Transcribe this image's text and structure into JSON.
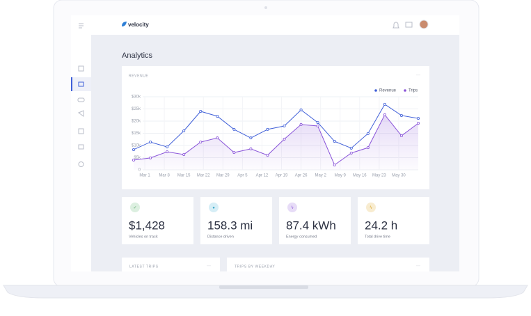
{
  "brand": "velocity",
  "page_title": "Analytics",
  "revenue_card": {
    "title": "REVENUE",
    "menu": "···",
    "chart_data": {
      "type": "line",
      "x": [
        -4,
        2,
        8,
        14,
        20,
        26,
        32,
        38,
        44,
        50,
        56,
        62,
        68,
        74,
        80,
        86,
        92,
        98
      ],
      "series": [
        {
          "name": "Revenue",
          "color": "#3f5fd8",
          "values": [
            8300,
            11400,
            9400,
            16000,
            24000,
            22000,
            16600,
            13100,
            16600,
            18000,
            24600,
            19400,
            11700,
            8900,
            14900,
            26900,
            22300,
            21100
          ]
        },
        {
          "name": "Trips",
          "color": "#8a55d9",
          "values": [
            4000,
            4900,
            7400,
            6300,
            11400,
            13100,
            7100,
            8600,
            6000,
            12600,
            18600,
            18000,
            2000,
            6900,
            9100,
            22600,
            14000,
            19100
          ]
        }
      ],
      "xlim": [
        -5,
        99
      ],
      "xticks": [
        {
          "value": 0,
          "label": "Mar 1"
        },
        {
          "value": 7,
          "label": "Mar 8"
        },
        {
          "value": 14,
          "label": "Mar 15"
        },
        {
          "value": 21,
          "label": "Mar 22"
        },
        {
          "value": 28,
          "label": "Mar 29"
        },
        {
          "value": 35,
          "label": "Apr 5"
        },
        {
          "value": 42,
          "label": "Apr 12"
        },
        {
          "value": 49,
          "label": "Apr 19"
        },
        {
          "value": 56,
          "label": "Apr 26"
        },
        {
          "value": 63,
          "label": "May 2"
        },
        {
          "value": 70,
          "label": "May 9"
        },
        {
          "value": 77,
          "label": "May 16"
        },
        {
          "value": 84,
          "label": "May 23"
        },
        {
          "value": 91,
          "label": "May 30"
        }
      ],
      "ylim": [
        0,
        30000
      ],
      "yticks": [
        0,
        {
          "value": 5000,
          "label": "$5k"
        },
        {
          "value": 10000,
          "label": "$10k"
        },
        {
          "value": 15000,
          "label": "$15k"
        },
        {
          "value": 20000,
          "label": "$20k"
        },
        {
          "value": 25000,
          "label": "$25k"
        },
        {
          "value": 30000,
          "label": "$30k"
        }
      ],
      "grid": true,
      "legend": "upper right"
    }
  },
  "stats": [
    {
      "value": "$1,428",
      "label": "Vehicles on track",
      "icon": "✓",
      "color": "#5aa86a",
      "bg": "#dcefe0"
    },
    {
      "value": "158.3 mi",
      "label": "Distance driven",
      "icon": "●",
      "color": "#3aa6c9",
      "bg": "#d6eef6"
    },
    {
      "value": "87.4 kWh",
      "label": "Energy consumed",
      "icon": "ϟ",
      "color": "#8a55d9",
      "bg": "#e7dcf7"
    },
    {
      "value": "24.2 h",
      "label": "Total drive time",
      "icon": "ϟ",
      "color": "#d9a62a",
      "bg": "#f8ecd0"
    }
  ],
  "sections": [
    {
      "title": "LATEST TRIPS",
      "menu": "···"
    },
    {
      "title": "TRIPS BY WEEKDAY",
      "menu": "···"
    }
  ]
}
